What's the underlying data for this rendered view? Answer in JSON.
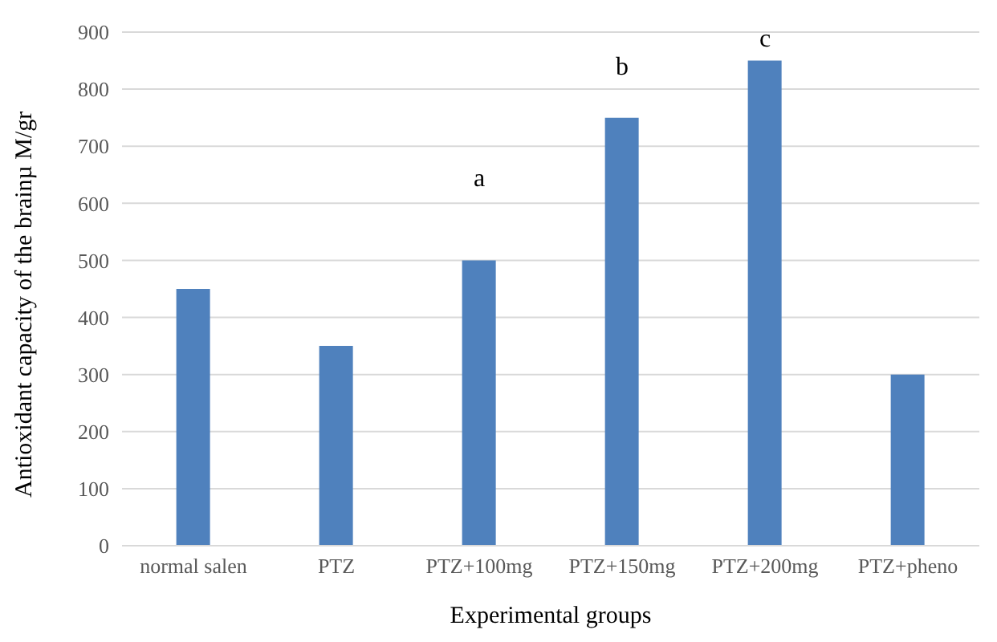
{
  "chart_data": {
    "type": "bar",
    "xlabel": "Experimental groups",
    "ylabel": "Antioxidant capacity of the brainµ M/gr",
    "categories": [
      "normal salen",
      "PTZ",
      "PTZ+100mg",
      "PTZ+150mg",
      "PTZ+200mg",
      "PTZ+pheno"
    ],
    "values": [
      450,
      350,
      500,
      750,
      850,
      300
    ],
    "color": "#4f81bd",
    "ylim": [
      0,
      900
    ],
    "yticks": [
      0,
      100,
      200,
      300,
      400,
      500,
      600,
      700,
      800,
      900
    ],
    "grid": "y",
    "annotations": [
      "a",
      "b",
      "c"
    ]
  }
}
